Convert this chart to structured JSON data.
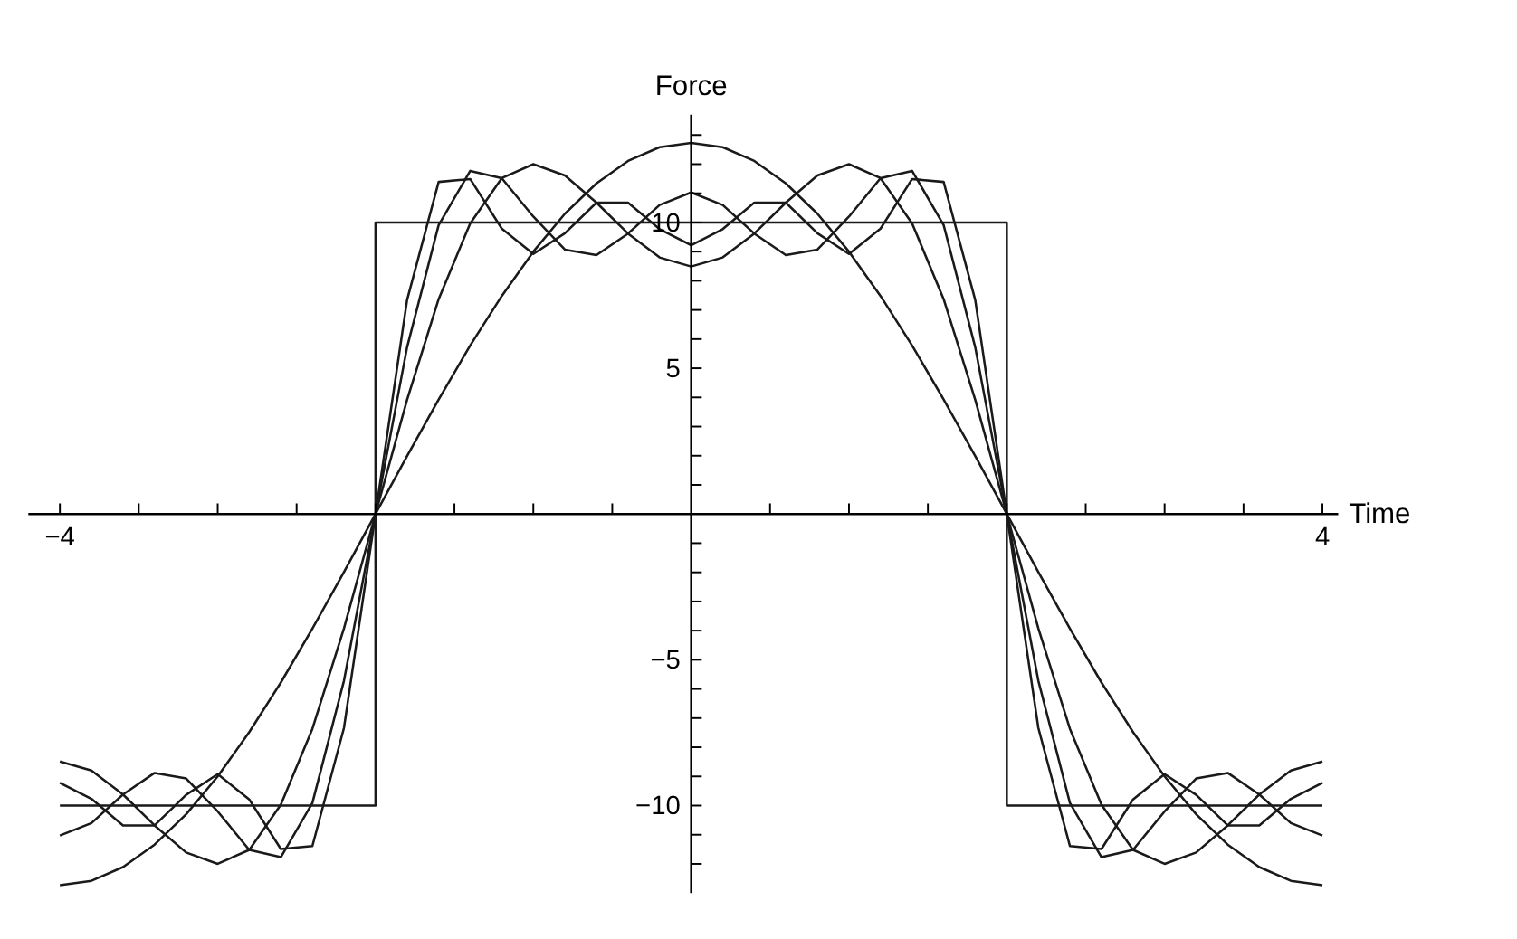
{
  "chart_data": {
    "type": "line",
    "xlabel": "Time",
    "ylabel": "Force",
    "x": [
      -4,
      -3.8,
      -3.6,
      -3.4,
      -3.2,
      -3,
      -2.8,
      -2.6,
      -2.4,
      -2.2,
      -2,
      -1.8,
      -1.6,
      -1.4,
      -1.2,
      -1,
      -0.8,
      -0.6,
      -0.4,
      -0.2,
      0,
      0.2,
      0.4,
      0.6,
      0.8,
      1,
      1.2,
      1.4,
      1.6,
      1.8,
      2,
      2.2,
      2.4,
      2.6,
      2.8,
      3,
      3.2,
      3.4,
      3.6,
      3.8,
      4
    ],
    "xlim": [
      -4.2,
      4.1
    ],
    "ylim": [
      -13,
      13.7
    ],
    "xticks": [
      -4,
      {
        "value": -3.5,
        "label": null
      },
      {
        "value": -3,
        "label": null
      },
      {
        "value": -2.5,
        "label": null
      },
      {
        "value": -2,
        "label": null
      },
      {
        "value": -1.5,
        "label": null
      },
      {
        "value": -1,
        "label": null
      },
      {
        "value": -0.5,
        "label": null
      },
      {
        "value": 0.5,
        "label": null
      },
      {
        "value": 1,
        "label": null
      },
      {
        "value": 1.5,
        "label": null
      },
      {
        "value": 2,
        "label": null
      },
      {
        "value": 2.5,
        "label": null
      },
      {
        "value": 3,
        "label": null
      },
      {
        "value": 3.5,
        "label": null
      },
      4
    ],
    "yticks": [
      {
        "value": -12,
        "label": null
      },
      {
        "value": -11,
        "label": null
      },
      -10,
      {
        "value": -9,
        "label": null
      },
      {
        "value": -8,
        "label": null
      },
      {
        "value": -7,
        "label": null
      },
      {
        "value": -6,
        "label": null
      },
      -5,
      {
        "value": -4,
        "label": null
      },
      {
        "value": -3,
        "label": null
      },
      {
        "value": -2,
        "label": null
      },
      {
        "value": -1,
        "label": null
      },
      {
        "value": 1,
        "label": null
      },
      {
        "value": 2,
        "label": null
      },
      {
        "value": 3,
        "label": null
      },
      {
        "value": 4,
        "label": null
      },
      5,
      {
        "value": 6,
        "label": null
      },
      {
        "value": 7,
        "label": null
      },
      {
        "value": 8,
        "label": null
      },
      {
        "value": 9,
        "label": null
      },
      10,
      {
        "value": 11,
        "label": null
      },
      {
        "value": 12,
        "label": null
      },
      {
        "value": 13,
        "label": null
      }
    ],
    "marker": "none",
    "line_style": "solid",
    "series": [
      {
        "color": "#1a1a1a",
        "x": [
          -4,
          -2,
          -2,
          2,
          2,
          4
        ],
        "values": [
          -10,
          -10,
          10,
          10,
          -10,
          -10
        ]
      },
      {
        "color": "#1a1a1a",
        "values": [
          -12.73,
          -12.58,
          -12.11,
          -11.34,
          -10.3,
          -9.0,
          -7.48,
          -5.78,
          -3.93,
          -1.99,
          0,
          1.99,
          3.93,
          5.78,
          7.48,
          9.0,
          10.3,
          11.34,
          12.11,
          12.58,
          12.73,
          12.58,
          12.11,
          11.34,
          10.3,
          9.0,
          7.48,
          5.78,
          3.93,
          1.99,
          0,
          -1.99,
          -3.93,
          -5.78,
          -7.48,
          -9.0,
          -10.3,
          -11.34,
          -12.11,
          -12.58,
          -12.73
        ]
      },
      {
        "color": "#1a1a1a",
        "values": [
          -8.49,
          -8.8,
          -9.62,
          -10.68,
          -11.61,
          -12.0,
          -11.52,
          -9.97,
          -7.37,
          -3.92,
          0,
          3.92,
          7.37,
          9.97,
          11.52,
          12.0,
          11.61,
          10.68,
          9.62,
          8.8,
          8.49,
          8.8,
          9.62,
          10.68,
          11.61,
          12.0,
          11.52,
          9.97,
          7.37,
          3.92,
          0,
          -3.92,
          -7.37,
          -9.97,
          -11.52,
          -12.0,
          -11.61,
          -10.68,
          -9.62,
          -8.8,
          -8.49
        ]
      },
      {
        "color": "#1a1a1a",
        "values": [
          -11.03,
          -10.6,
          -9.62,
          -8.88,
          -9.07,
          -10.2,
          -11.52,
          -11.77,
          -9.91,
          -5.72,
          0,
          5.72,
          9.91,
          11.77,
          11.52,
          10.2,
          9.07,
          8.88,
          9.62,
          10.6,
          11.03,
          10.6,
          9.62,
          8.88,
          9.07,
          10.2,
          11.52,
          11.77,
          9.91,
          5.72,
          0,
          -5.72,
          -9.91,
          -11.77,
          -11.52,
          -10.2,
          -9.07,
          -8.88,
          -9.62,
          -10.6,
          -11.03
        ]
      },
      {
        "color": "#1a1a1a",
        "values": [
          -9.22,
          -9.77,
          -10.68,
          -10.68,
          -9.63,
          -8.92,
          -9.79,
          -11.49,
          -11.39,
          -7.34,
          0,
          7.34,
          11.39,
          11.49,
          9.79,
          8.92,
          9.63,
          10.68,
          10.68,
          9.77,
          9.22,
          9.77,
          10.68,
          10.68,
          9.63,
          8.92,
          9.79,
          11.49,
          11.39,
          7.34,
          0,
          -7.34,
          -11.39,
          -11.49,
          -9.79,
          -8.92,
          -9.63,
          -10.68,
          -10.68,
          -9.77,
          -9.22
        ]
      }
    ]
  }
}
